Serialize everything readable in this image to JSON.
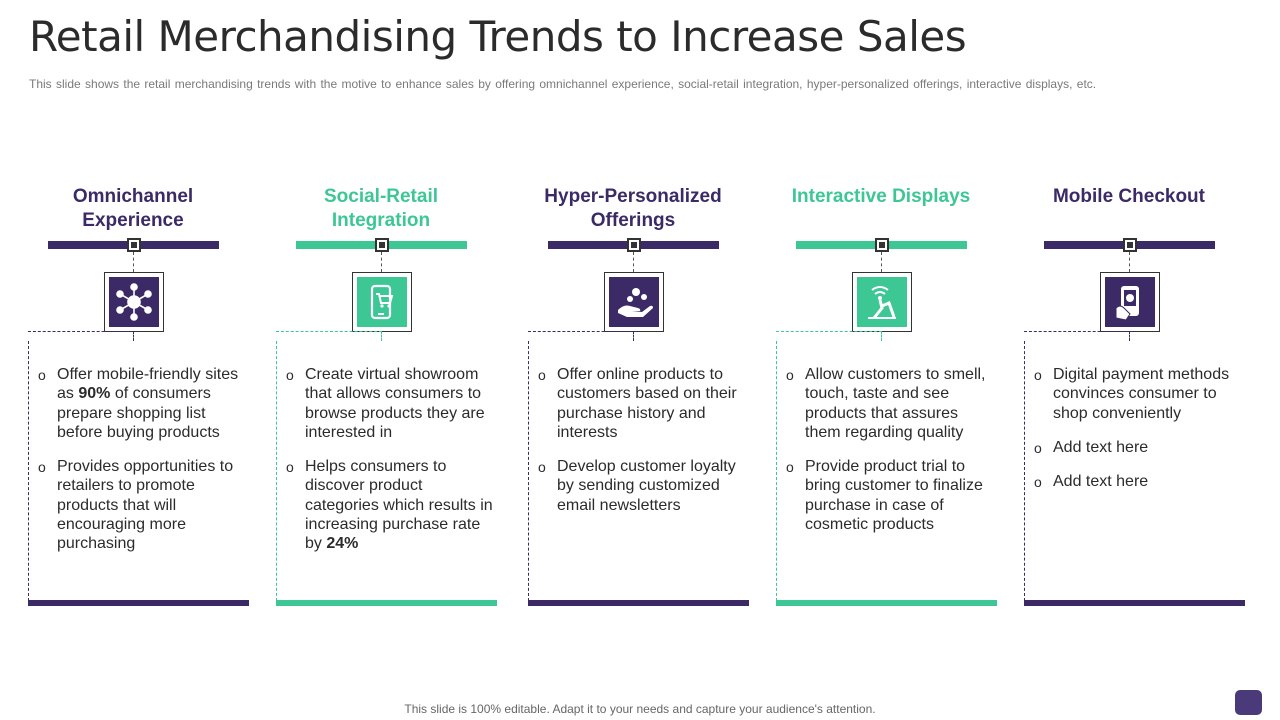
{
  "title": "Retail Merchandising Trends to Increase Sales",
  "subtitle": "This slide shows the retail merchandising trends with the motive to enhance sales by offering omnichannel experience, social-retail integration, hyper-personalized offerings, interactive displays, etc.",
  "colors": {
    "purple": "#3b2a66",
    "green": "#3cc795"
  },
  "columns": [
    {
      "heading": "Omnichannel Experience",
      "color": "purple",
      "icon": "network-hub-icon",
      "bullets": [
        {
          "pre": "Offer mobile-friendly sites as ",
          "bold": "90%",
          "post": " of consumers prepare shopping list before buying products"
        },
        {
          "pre": "Provides opportunities to retailers to promote products that will encouraging more purchasing",
          "bold": "",
          "post": ""
        }
      ]
    },
    {
      "heading": "Social-Retail Integration",
      "color": "green",
      "icon": "mobile-shopping-cart-icon",
      "bullets": [
        {
          "pre": "Create virtual showroom that allows consumers to browse products they are interested in",
          "bold": "",
          "post": ""
        },
        {
          "pre": "Helps consumers to discover product categories which results in increasing purchase rate by ",
          "bold": "24%",
          "post": ""
        }
      ]
    },
    {
      "heading": "Hyper-Personalized Offerings",
      "color": "purple",
      "icon": "hand-offering-icon",
      "bullets": [
        {
          "pre": "Offer online products to customers based on their purchase history and interests",
          "bold": "",
          "post": ""
        },
        {
          "pre": "Develop customer loyalty by sending customized email newsletters",
          "bold": "",
          "post": ""
        }
      ]
    },
    {
      "heading": "Interactive Displays",
      "color": "green",
      "icon": "touch-display-icon",
      "bullets": [
        {
          "pre": "Allow customers to smell, touch, taste and see products that assures them regarding quality",
          "bold": "",
          "post": ""
        },
        {
          "pre": "Provide product trial to bring customer to finalize purchase in case of cosmetic products",
          "bold": "",
          "post": ""
        }
      ]
    },
    {
      "heading": "Mobile Checkout",
      "color": "purple",
      "icon": "mobile-payment-icon",
      "bullets": [
        {
          "pre": "Digital payment methods convinces consumer to shop conveniently",
          "bold": "",
          "post": ""
        },
        {
          "pre": "Add text here",
          "bold": "",
          "post": ""
        },
        {
          "pre": "Add text here",
          "bold": "",
          "post": ""
        }
      ]
    }
  ],
  "bullet_mark": "o",
  "footer": "This slide is 100% editable. Adapt it to your needs and capture your audience's attention."
}
